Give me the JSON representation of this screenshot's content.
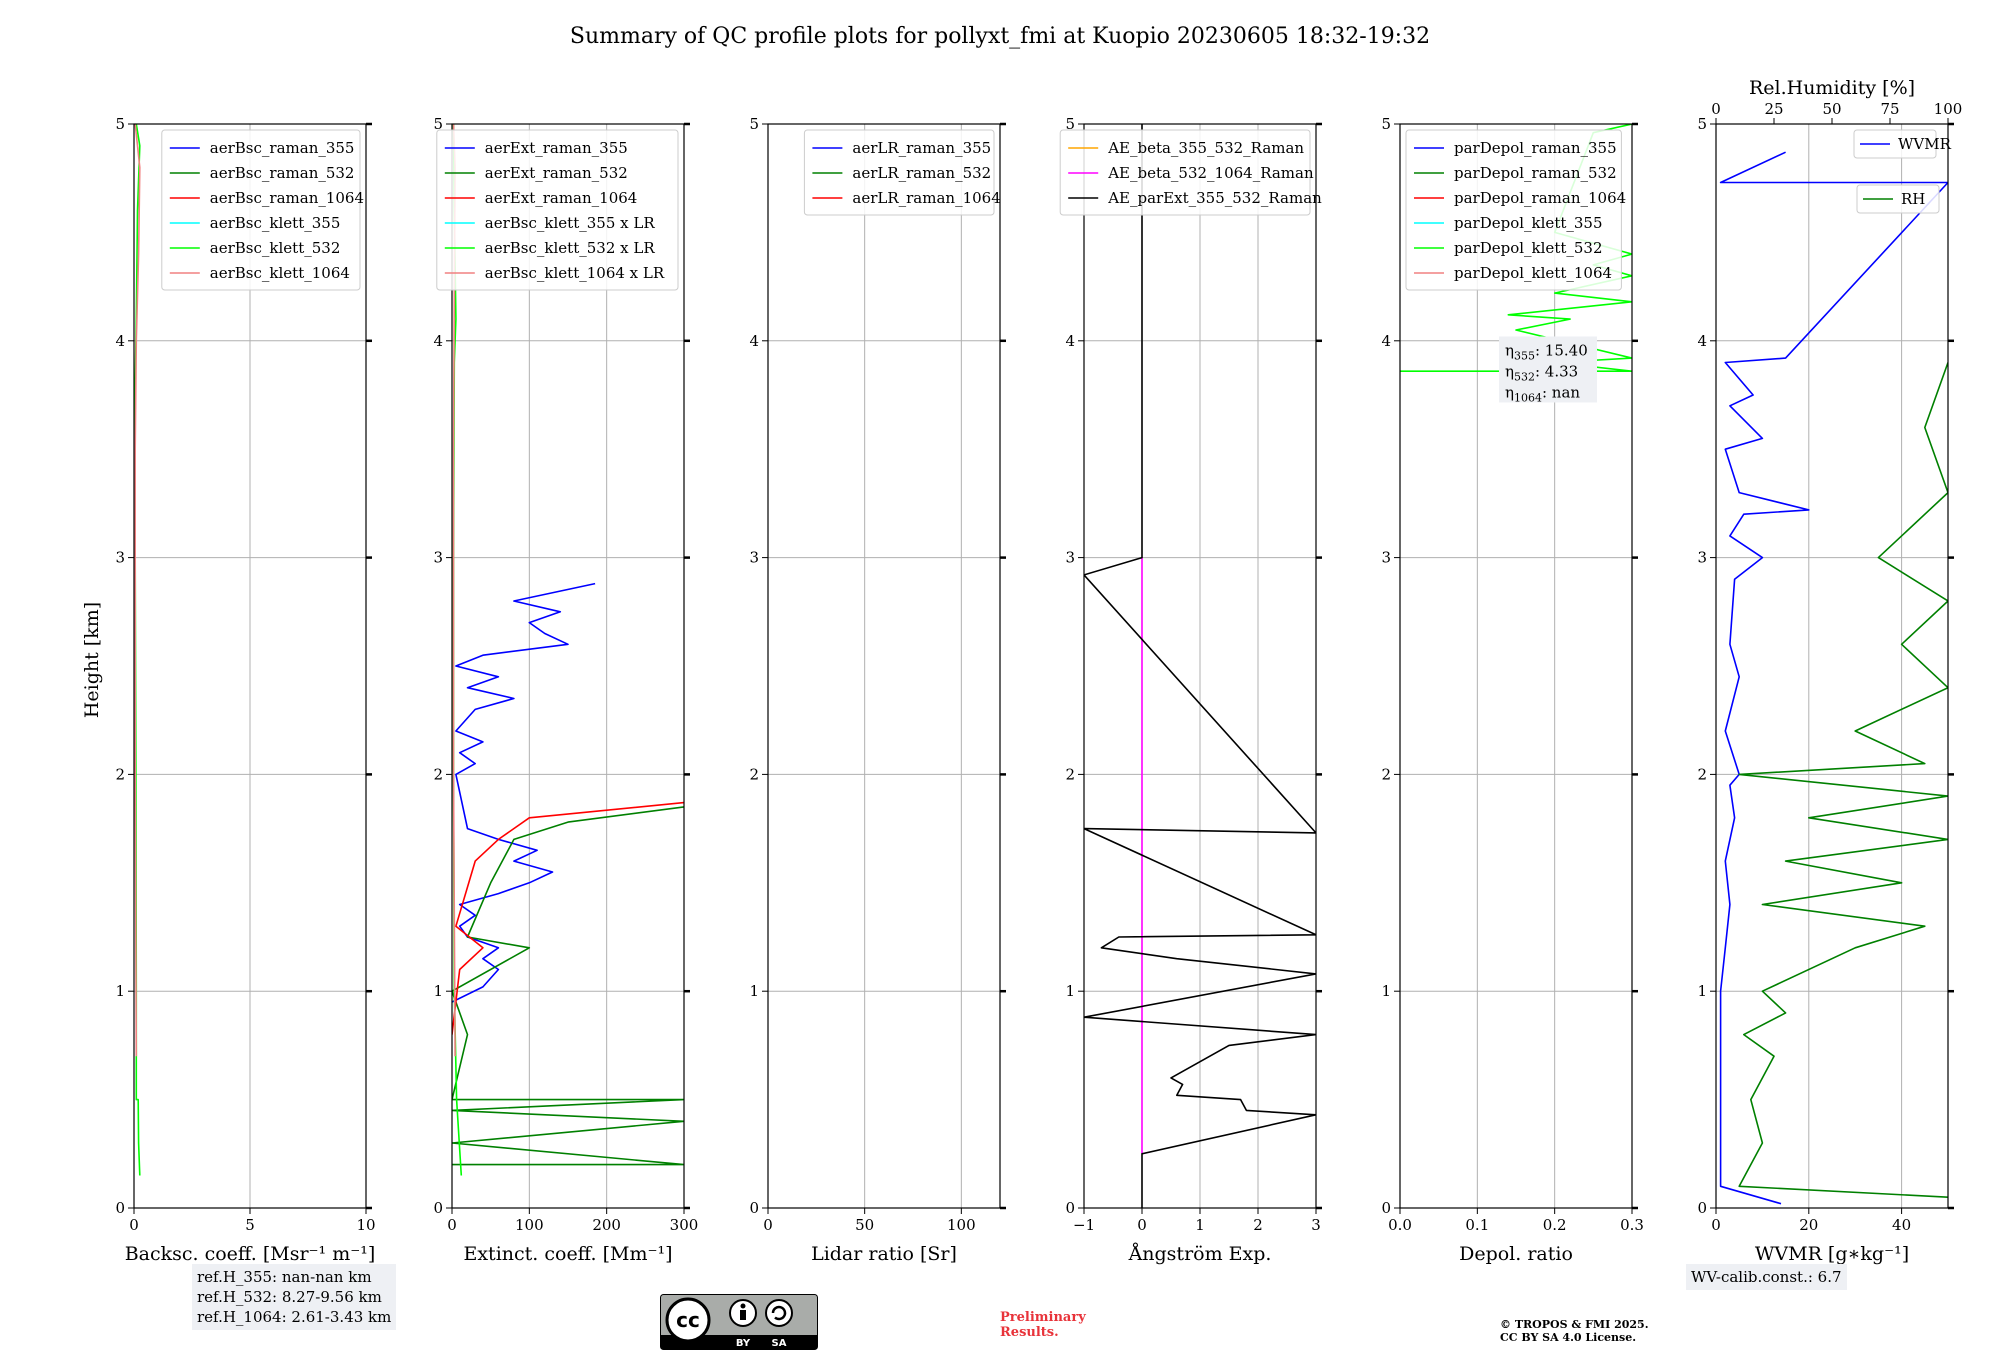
{
  "title": "Summary of QC profile plots for pollyxt_fmi at Kuopio 20230605 18:32-19:32",
  "ylabel": "Height [km]",
  "colors": {
    "blue": "#0000ff",
    "green": "#008000",
    "red": "#ff0000",
    "cyan": "#00ffff",
    "lime": "#00ff00",
    "salmon": "#f08080",
    "orange": "#ffa500",
    "magenta": "#ff00ff",
    "black": "#000000",
    "grid": "#b0b0b0",
    "notebg": "#eef0f4"
  },
  "chart_data": [
    {
      "type": "line",
      "xlabel": "Backsc. coeff. [Msr⁻¹ m⁻¹]",
      "ylabel": "Height [km]",
      "xlim": [
        0,
        10
      ],
      "ylim": [
        0,
        5
      ],
      "xticks": [
        "0",
        "5",
        "10"
      ],
      "yticks": [
        "0",
        "1",
        "2",
        "3",
        "4",
        "5"
      ],
      "grid": true,
      "legend": "top-right",
      "series": [
        {
          "name": "aerBsc_raman_355",
          "color": "blue",
          "points": []
        },
        {
          "name": "aerBsc_raman_532",
          "color": "green",
          "points": []
        },
        {
          "name": "aerBsc_raman_1064",
          "color": "red",
          "points": []
        },
        {
          "name": "aerBsc_klett_355",
          "color": "cyan",
          "points": []
        },
        {
          "name": "aerBsc_klett_532",
          "color": "lime",
          "points": [
            [
              0.25,
              0.15
            ],
            [
              0.2,
              0.3
            ],
            [
              0.18,
              0.5
            ],
            [
              0.1,
              0.5
            ],
            [
              0.1,
              1.0
            ],
            [
              0.08,
              2.0
            ],
            [
              0.05,
              3.0
            ],
            [
              0.05,
              3.8
            ],
            [
              0.1,
              4.1
            ],
            [
              0.15,
              4.6
            ],
            [
              0.25,
              4.9
            ],
            [
              0.1,
              5.0
            ]
          ]
        },
        {
          "name": "aerBsc_klett_1064",
          "color": "salmon",
          "points": [
            [
              0.1,
              0.7
            ],
            [
              0.05,
              2.0
            ],
            [
              0.05,
              3.5
            ],
            [
              0.1,
              4.0
            ],
            [
              0.2,
              4.4
            ],
            [
              0.25,
              4.8
            ],
            [
              0.05,
              5.0
            ]
          ]
        }
      ]
    },
    {
      "type": "line",
      "xlabel": "Extinct. coeff. [Mm⁻¹]",
      "ylabel": "",
      "xlim": [
        0,
        300
      ],
      "ylim": [
        0,
        5
      ],
      "xticks": [
        "0",
        "100",
        "200",
        "300"
      ],
      "yticks": [
        "0",
        "1",
        "2",
        "3",
        "4",
        "5"
      ],
      "grid": true,
      "legend": "top-right",
      "series": [
        {
          "name": "aerExt_raman_355",
          "color": "blue",
          "points": [
            [
              0,
              0.95
            ],
            [
              40,
              1.02
            ],
            [
              60,
              1.1
            ],
            [
              40,
              1.15
            ],
            [
              60,
              1.2
            ],
            [
              20,
              1.25
            ],
            [
              10,
              1.3
            ],
            [
              30,
              1.35
            ],
            [
              10,
              1.4
            ],
            [
              60,
              1.45
            ],
            [
              100,
              1.5
            ],
            [
              130,
              1.55
            ],
            [
              80,
              1.6
            ],
            [
              110,
              1.65
            ],
            [
              60,
              1.7
            ],
            [
              20,
              1.75
            ],
            [
              5,
              2.0
            ],
            [
              30,
              2.05
            ],
            [
              10,
              2.1
            ],
            [
              40,
              2.15
            ],
            [
              5,
              2.2
            ],
            [
              30,
              2.3
            ],
            [
              80,
              2.35
            ],
            [
              20,
              2.4
            ],
            [
              60,
              2.45
            ],
            [
              5,
              2.5
            ],
            [
              40,
              2.55
            ],
            [
              150,
              2.6
            ],
            [
              120,
              2.65
            ],
            [
              100,
              2.7
            ],
            [
              140,
              2.75
            ],
            [
              80,
              2.8
            ],
            [
              185,
              2.88
            ]
          ]
        },
        {
          "name": "aerExt_raman_532",
          "color": "green",
          "points": [
            [
              0,
              0.2
            ],
            [
              300,
              0.2
            ],
            [
              0,
              0.3
            ],
            [
              300,
              0.4
            ],
            [
              0,
              0.45
            ],
            [
              300,
              0.5
            ],
            [
              0,
              0.5
            ],
            [
              20,
              0.8
            ],
            [
              0,
              1.0
            ],
            [
              100,
              1.2
            ],
            [
              20,
              1.25
            ],
            [
              50,
              1.5
            ],
            [
              80,
              1.7
            ],
            [
              150,
              1.78
            ],
            [
              300,
              1.85
            ]
          ]
        },
        {
          "name": "aerExt_raman_1064",
          "color": "red",
          "points": [
            [
              0,
              0.8
            ],
            [
              10,
              1.1
            ],
            [
              40,
              1.2
            ],
            [
              5,
              1.3
            ],
            [
              30,
              1.6
            ],
            [
              60,
              1.7
            ],
            [
              100,
              1.8
            ],
            [
              300,
              1.87
            ]
          ]
        },
        {
          "name": "aerBsc_klett_355 x LR",
          "color": "cyan",
          "points": []
        },
        {
          "name": "aerBsc_klett_532 x LR",
          "color": "lime",
          "points": [
            [
              12,
              0.15
            ],
            [
              6,
              0.5
            ],
            [
              3,
              1.0
            ],
            [
              2,
              2.0
            ],
            [
              2,
              3.0
            ],
            [
              3,
              3.9
            ],
            [
              5,
              4.1
            ],
            [
              3,
              4.6
            ],
            [
              2,
              5.0
            ]
          ]
        },
        {
          "name": "aerBsc_klett_1064 x LR",
          "color": "salmon",
          "points": [
            [
              4,
              0.7
            ],
            [
              2,
              2.0
            ],
            [
              2,
              3.5
            ],
            [
              3,
              4.2
            ],
            [
              4,
              4.8
            ],
            [
              2,
              5.0
            ]
          ]
        }
      ]
    },
    {
      "type": "line",
      "xlabel": "Lidar ratio [Sr]",
      "ylabel": "",
      "xlim": [
        0,
        120
      ],
      "ylim": [
        0,
        5
      ],
      "xticks": [
        "0",
        "50",
        "100"
      ],
      "yticks": [
        "0",
        "1",
        "2",
        "3",
        "4",
        "5"
      ],
      "grid": true,
      "legend": "top-right",
      "series": [
        {
          "name": "aerLR_raman_355",
          "color": "blue",
          "points": []
        },
        {
          "name": "aerLR_raman_532",
          "color": "green",
          "points": []
        },
        {
          "name": "aerLR_raman_1064",
          "color": "red",
          "points": []
        }
      ]
    },
    {
      "type": "line",
      "xlabel": "Ångström Exp.",
      "ylabel": "",
      "xlim": [
        -1,
        3
      ],
      "ylim": [
        0,
        5
      ],
      "xticks": [
        "−1",
        "0",
        "1",
        "2",
        "3"
      ],
      "yticks": [
        "0",
        "1",
        "2",
        "3",
        "4",
        "5"
      ],
      "grid": true,
      "legend": "top-right",
      "series": [
        {
          "name": "AE_beta_355_532_Raman",
          "color": "orange",
          "points": []
        },
        {
          "name": "AE_beta_532_1064_Raman",
          "color": "magenta",
          "points": [
            [
              0,
              0.25
            ],
            [
              0,
              3.0
            ]
          ]
        },
        {
          "name": "AE_parExt_355_532_Raman",
          "color": "black",
          "points": [
            [
              0,
              0.0
            ],
            [
              0,
              0.25
            ],
            [
              3,
              0.43
            ],
            [
              1.8,
              0.45
            ],
            [
              1.7,
              0.5
            ],
            [
              0.6,
              0.52
            ],
            [
              0.7,
              0.57
            ],
            [
              0.5,
              0.6
            ],
            [
              1.5,
              0.75
            ],
            [
              3,
              0.8
            ],
            [
              -1,
              0.88
            ],
            [
              3,
              1.08
            ],
            [
              0.6,
              1.15
            ],
            [
              -0.7,
              1.2
            ],
            [
              -0.4,
              1.25
            ],
            [
              3,
              1.26
            ],
            [
              -1,
              1.75
            ],
            [
              3,
              1.73
            ],
            [
              -1,
              2.92
            ],
            [
              0,
              3.0
            ],
            [
              0,
              5.0
            ]
          ]
        }
      ]
    },
    {
      "type": "line",
      "xlabel": "Depol. ratio",
      "ylabel": "",
      "xlim": [
        0,
        0.3
      ],
      "ylim": [
        0,
        5
      ],
      "xticks": [
        "0.0",
        "0.1",
        "0.2",
        "0.3"
      ],
      "yticks": [
        "0",
        "1",
        "2",
        "3",
        "4",
        "5"
      ],
      "grid": true,
      "legend": "top-left",
      "annotation": {
        "lines": [
          "η355: 15.40",
          "η532: 4.33",
          "η1064: nan"
        ]
      },
      "series": [
        {
          "name": "parDepol_raman_355",
          "color": "blue",
          "points": []
        },
        {
          "name": "parDepol_raman_532",
          "color": "green",
          "points": []
        },
        {
          "name": "parDepol_raman_1064",
          "color": "red",
          "points": []
        },
        {
          "name": "parDepol_klett_355",
          "color": "cyan",
          "points": []
        },
        {
          "name": "parDepol_klett_532",
          "color": "lime",
          "points": [
            [
              0.0,
              3.86
            ],
            [
              0.3,
              3.86
            ],
            [
              0.2,
              3.9
            ],
            [
              0.3,
              3.92
            ],
            [
              0.15,
              4.05
            ],
            [
              0.22,
              4.1
            ],
            [
              0.14,
              4.12
            ],
            [
              0.3,
              4.18
            ],
            [
              0.2,
              4.22
            ],
            [
              0.3,
              4.3
            ],
            [
              0.25,
              4.35
            ],
            [
              0.3,
              4.4
            ],
            [
              0.2,
              4.5
            ],
            [
              0.25,
              4.96
            ],
            [
              0.3,
              5.0
            ]
          ]
        },
        {
          "name": "parDepol_klett_1064",
          "color": "salmon",
          "points": []
        }
      ]
    },
    {
      "type": "line",
      "xlabel": "WVMR [g∗kg⁻¹]",
      "x2label": "Rel.Humidity [%]",
      "ylabel": "",
      "xlim": [
        0,
        50
      ],
      "x2lim": [
        0,
        100
      ],
      "ylim": [
        0,
        5
      ],
      "xticks": [
        "0",
        "20",
        "40"
      ],
      "x2ticks": [
        "0",
        "25",
        "50",
        "75",
        "100"
      ],
      "yticks": [
        "0",
        "1",
        "2",
        "3",
        "4",
        "5"
      ],
      "grid": true,
      "legend": "top-right",
      "series": [
        {
          "name": "WVMR",
          "color": "blue",
          "axis": "x",
          "points": [
            [
              14,
              0.02
            ],
            [
              1,
              0.1
            ],
            [
              1,
              0.6
            ],
            [
              1,
              1.0
            ],
            [
              2,
              1.2
            ],
            [
              3,
              1.4
            ],
            [
              2,
              1.6
            ],
            [
              4,
              1.8
            ],
            [
              3,
              1.95
            ],
            [
              5,
              2.0
            ],
            [
              2,
              2.2
            ],
            [
              5,
              2.45
            ],
            [
              3,
              2.6
            ],
            [
              4,
              2.9
            ],
            [
              10,
              3.0
            ],
            [
              3,
              3.1
            ],
            [
              6,
              3.2
            ],
            [
              20,
              3.22
            ],
            [
              5,
              3.3
            ],
            [
              2,
              3.5
            ],
            [
              10,
              3.55
            ],
            [
              3,
              3.7
            ],
            [
              8,
              3.75
            ],
            [
              2,
              3.9
            ],
            [
              15,
              3.92
            ],
            [
              50,
              4.73
            ],
            [
              1,
              4.73
            ],
            [
              15,
              4.87
            ]
          ]
        },
        {
          "name": "RH",
          "color": "green",
          "axis": "x2",
          "points": [
            [
              100,
              0.05
            ],
            [
              10,
              0.1
            ],
            [
              20,
              0.3
            ],
            [
              15,
              0.5
            ],
            [
              25,
              0.7
            ],
            [
              12,
              0.8
            ],
            [
              30,
              0.9
            ],
            [
              20,
              1.0
            ],
            [
              60,
              1.2
            ],
            [
              90,
              1.3
            ],
            [
              20,
              1.4
            ],
            [
              80,
              1.5
            ],
            [
              30,
              1.6
            ],
            [
              100,
              1.7
            ],
            [
              40,
              1.8
            ],
            [
              100,
              1.9
            ],
            [
              10,
              2.0
            ],
            [
              90,
              2.05
            ],
            [
              60,
              2.2
            ],
            [
              100,
              2.4
            ],
            [
              80,
              2.6
            ],
            [
              100,
              2.8
            ],
            [
              70,
              3.0
            ],
            [
              100,
              3.3
            ],
            [
              90,
              3.6
            ],
            [
              100,
              3.9
            ]
          ]
        }
      ]
    }
  ],
  "notes": {
    "refh": [
      "ref.H_355: nan-nan km",
      "ref.H_532: 8.27-9.56 km",
      "ref.H_1064: 2.61-3.43 km"
    ],
    "wvcalib": "WV-calib.const.: 6.7",
    "preliminary": [
      "Preliminary",
      "Results."
    ],
    "copyright": [
      "© TROPOS & FMI 2025.",
      "CC BY SA 4.0 License."
    ],
    "cc_badge": {
      "icon": "cc-by-sa-license-icon",
      "labels": [
        "BY",
        "SA"
      ]
    }
  }
}
